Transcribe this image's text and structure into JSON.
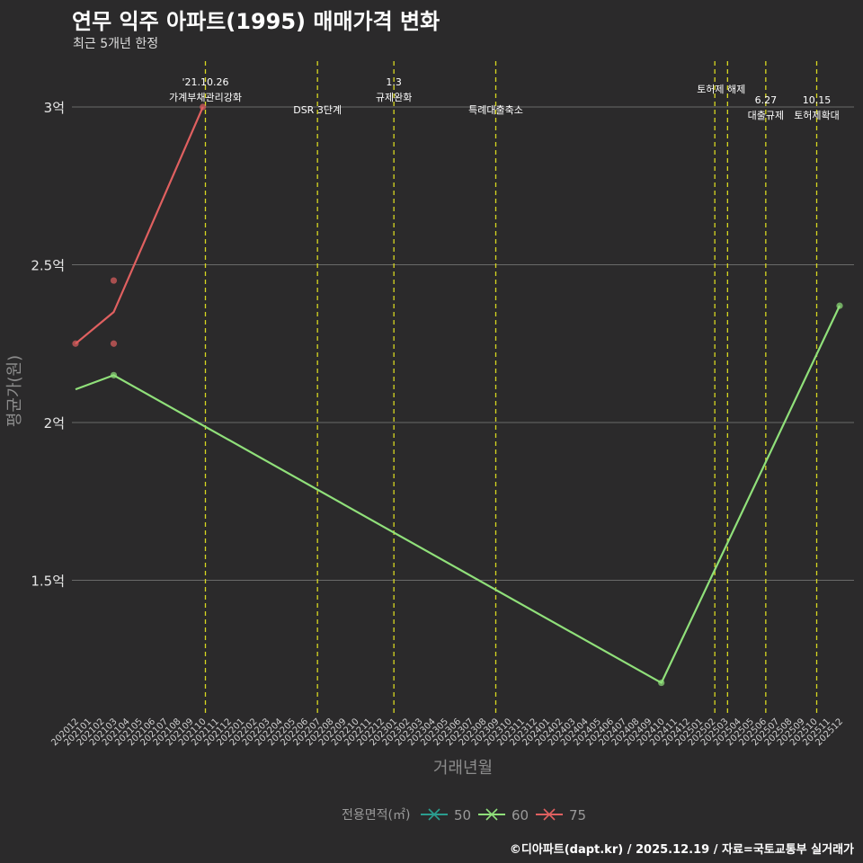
{
  "title": "연무 익주 아파트(1995) 매매가격 변화",
  "subtitle": "최근 5개년 한정",
  "caption": "©디아파트(dapt.kr) / 2025.12.19 / 자료=국토교통부 실거래가",
  "colors": {
    "background": "#2b2a2b",
    "grid": "#6a6a6a",
    "event_line": "#d8d820",
    "s50": "#2a9d8f",
    "s60": "#90e07a",
    "s75": "#e06060"
  },
  "chart_data": {
    "type": "line",
    "xlabel": "거래년월",
    "ylabel": "평균가(원)",
    "x_categories": [
      "202012",
      "202101",
      "202102",
      "202103",
      "202104",
      "202105",
      "202106",
      "202107",
      "202108",
      "202109",
      "202110",
      "202111",
      "202112",
      "202201",
      "202202",
      "202203",
      "202204",
      "202205",
      "202206",
      "202207",
      "202208",
      "202209",
      "202210",
      "202211",
      "202212",
      "202301",
      "202302",
      "202303",
      "202304",
      "202305",
      "202306",
      "202307",
      "202308",
      "202309",
      "202310",
      "202311",
      "202312",
      "202401",
      "202402",
      "202403",
      "202404",
      "202405",
      "202406",
      "202407",
      "202408",
      "202409",
      "202410",
      "202411",
      "202412",
      "202501",
      "202502",
      "202503",
      "202504",
      "202505",
      "202506",
      "202507",
      "202508",
      "202509",
      "202510",
      "202511",
      "202512"
    ],
    "ylim": [
      1.1,
      3.15
    ],
    "y_ticks": [
      {
        "value": 1.5,
        "label": "1.5억"
      },
      {
        "value": 2.0,
        "label": "2억"
      },
      {
        "value": 2.5,
        "label": "2.5억"
      },
      {
        "value": 3.0,
        "label": "3억"
      }
    ],
    "legend": {
      "title": "전용면적(㎡)",
      "position": "bottom"
    },
    "series": [
      {
        "name": "50",
        "color": "#2a9d8f",
        "line": [],
        "points": []
      },
      {
        "name": "60",
        "color": "#90e07a",
        "line": [
          {
            "x": "202012",
            "y": 2.105
          },
          {
            "x": "202103",
            "y": 2.15
          },
          {
            "x": "202410",
            "y": 1.175
          },
          {
            "x": "202512",
            "y": 2.37
          }
        ],
        "points": [
          {
            "x": "202103",
            "y": 2.15
          },
          {
            "x": "202410",
            "y": 1.175
          },
          {
            "x": "202512",
            "y": 2.37
          }
        ]
      },
      {
        "name": "75",
        "color": "#e06060",
        "line": [
          {
            "x": "202012",
            "y": 2.25
          },
          {
            "x": "202103",
            "y": 2.35
          },
          {
            "x": "202110",
            "y": 3.0
          }
        ],
        "points": [
          {
            "x": "202012",
            "y": 2.25
          },
          {
            "x": "202103",
            "y": 2.45
          },
          {
            "x": "202103",
            "y": 2.25
          },
          {
            "x": "202110",
            "y": 3.0
          }
        ]
      }
    ],
    "events": [
      {
        "x": "202110.2",
        "lines": [
          "'21.10.26",
          "가계부채관리강화"
        ],
        "tier": "high"
      },
      {
        "x": "202207",
        "lines": [
          "DSR 3단계"
        ],
        "tier": "low"
      },
      {
        "x": "202301",
        "lines": [
          "1.3",
          "규제완화"
        ],
        "tier": "high"
      },
      {
        "x": "202309",
        "lines": [
          "특례대출축소"
        ],
        "tier": "low"
      },
      {
        "x": "202502.2",
        "lines": [
          "토허제 해제"
        ],
        "tier": "mid",
        "anchor_right_of": "202503"
      },
      {
        "x": "202503.2",
        "lines": [],
        "tier": "none"
      },
      {
        "x": "202506.2",
        "lines": [
          "6.27",
          "대출규제"
        ],
        "tier": "low2"
      },
      {
        "x": "202510.2",
        "lines": [
          "10.15",
          "토허제확대"
        ],
        "tier": "low2"
      }
    ]
  }
}
